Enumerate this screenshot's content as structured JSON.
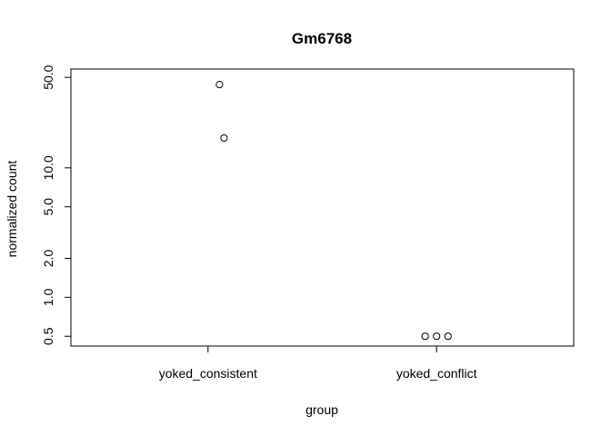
{
  "chart_data": {
    "type": "scatter",
    "title": "Gm6768",
    "xlabel": "group",
    "ylabel": "normalized count",
    "y_scale": "log",
    "ylim": [
      0.42,
      58
    ],
    "yticks": [
      0.5,
      1.0,
      2.0,
      5.0,
      10.0,
      50.0
    ],
    "ytick_labels": [
      "0.5",
      "1.0",
      "2.0",
      "5.0",
      "10.0",
      "50.0"
    ],
    "categories": [
      "yoked_consistent",
      "yoked_conflict"
    ],
    "grid": false,
    "points": [
      {
        "group": "yoked_consistent",
        "value": 44
      },
      {
        "group": "yoked_consistent",
        "value": 17
      },
      {
        "group": "yoked_conflict",
        "value": 0.5
      },
      {
        "group": "yoked_conflict",
        "value": 0.5
      },
      {
        "group": "yoked_conflict",
        "value": 0.5
      }
    ]
  }
}
